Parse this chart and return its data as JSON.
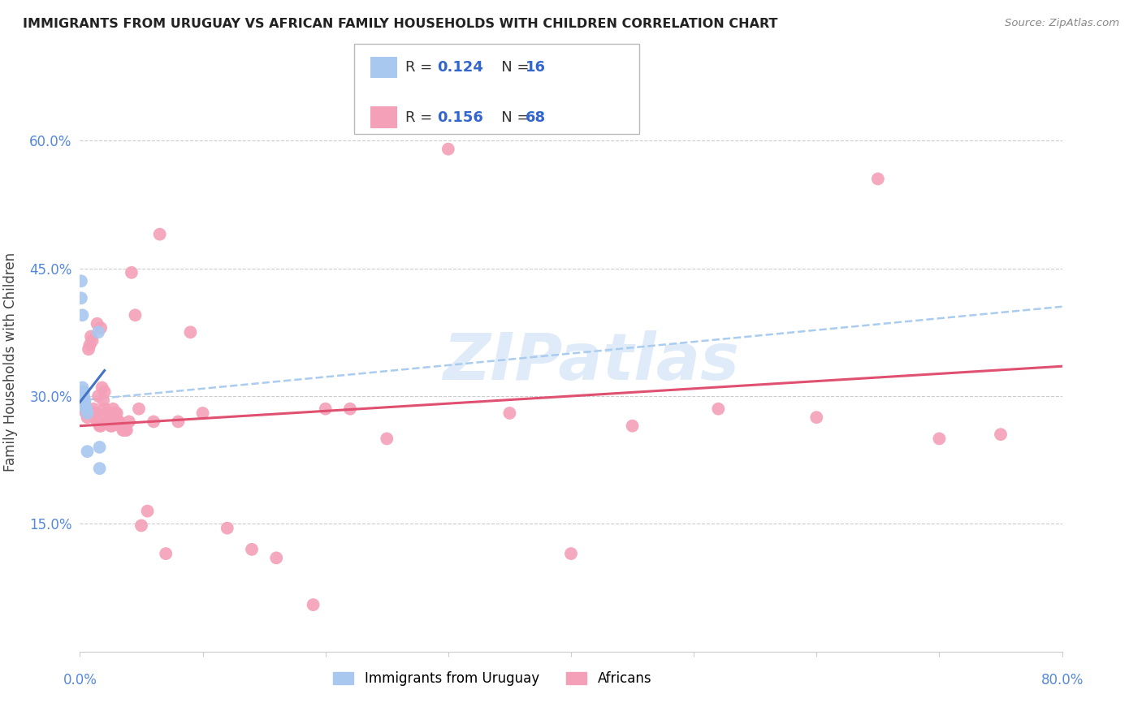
{
  "title": "IMMIGRANTS FROM URUGUAY VS AFRICAN FAMILY HOUSEHOLDS WITH CHILDREN CORRELATION CHART",
  "source": "Source: ZipAtlas.com",
  "ylabel": "Family Households with Children",
  "xlim": [
    0.0,
    0.8
  ],
  "ylim": [
    0.0,
    0.68
  ],
  "yticks": [
    0.15,
    0.3,
    0.45,
    0.6
  ],
  "ytick_labels": [
    "15.0%",
    "30.0%",
    "45.0%",
    "60.0%"
  ],
  "blue_color": "#A8C8F0",
  "pink_color": "#F4A0B8",
  "blue_line_color": "#4472C4",
  "pink_line_color": "#E05070",
  "dashed_line_color": "#AACCEE",
  "watermark": "ZIPatlas",
  "legend_r1": "R = 0.124",
  "legend_n1": "N = 16",
  "legend_r2": "R = 0.156",
  "legend_n2": "N = 68",
  "blue_dots_x": [
    0.001,
    0.001,
    0.002,
    0.002,
    0.003,
    0.003,
    0.003,
    0.004,
    0.004,
    0.005,
    0.005,
    0.006,
    0.006,
    0.015,
    0.016,
    0.016
  ],
  "blue_dots_y": [
    0.435,
    0.415,
    0.395,
    0.31,
    0.305,
    0.3,
    0.295,
    0.295,
    0.29,
    0.285,
    0.285,
    0.28,
    0.235,
    0.375,
    0.24,
    0.215
  ],
  "pink_dots_x": [
    0.001,
    0.003,
    0.004,
    0.005,
    0.006,
    0.007,
    0.008,
    0.009,
    0.01,
    0.011,
    0.012,
    0.013,
    0.014,
    0.014,
    0.015,
    0.016,
    0.017,
    0.017,
    0.018,
    0.019,
    0.02,
    0.02,
    0.021,
    0.022,
    0.023,
    0.024,
    0.025,
    0.026,
    0.027,
    0.028,
    0.029,
    0.03,
    0.031,
    0.032,
    0.033,
    0.034,
    0.035,
    0.036,
    0.037,
    0.038,
    0.04,
    0.042,
    0.045,
    0.048,
    0.05,
    0.055,
    0.06,
    0.065,
    0.07,
    0.08,
    0.09,
    0.1,
    0.12,
    0.14,
    0.16,
    0.19,
    0.2,
    0.22,
    0.25,
    0.3,
    0.35,
    0.4,
    0.45,
    0.52,
    0.6,
    0.65,
    0.7,
    0.75
  ],
  "pink_dots_y": [
    0.285,
    0.29,
    0.285,
    0.28,
    0.275,
    0.355,
    0.36,
    0.37,
    0.365,
    0.285,
    0.28,
    0.275,
    0.27,
    0.385,
    0.3,
    0.265,
    0.265,
    0.38,
    0.31,
    0.295,
    0.305,
    0.285,
    0.28,
    0.27,
    0.27,
    0.27,
    0.265,
    0.265,
    0.285,
    0.28,
    0.28,
    0.28,
    0.27,
    0.27,
    0.265,
    0.265,
    0.26,
    0.26,
    0.26,
    0.26,
    0.27,
    0.445,
    0.395,
    0.285,
    0.148,
    0.165,
    0.27,
    0.49,
    0.115,
    0.27,
    0.375,
    0.28,
    0.145,
    0.12,
    0.11,
    0.055,
    0.285,
    0.285,
    0.25,
    0.59,
    0.28,
    0.115,
    0.265,
    0.285,
    0.275,
    0.555,
    0.25,
    0.255
  ],
  "blue_line_x": [
    0.0,
    0.02
  ],
  "blue_line_y": [
    0.293,
    0.33
  ],
  "pink_line_x": [
    0.0,
    0.8
  ],
  "pink_line_y": [
    0.265,
    0.335
  ],
  "dashed_line_x": [
    0.0,
    0.8
  ],
  "dashed_line_y": [
    0.295,
    0.405
  ]
}
